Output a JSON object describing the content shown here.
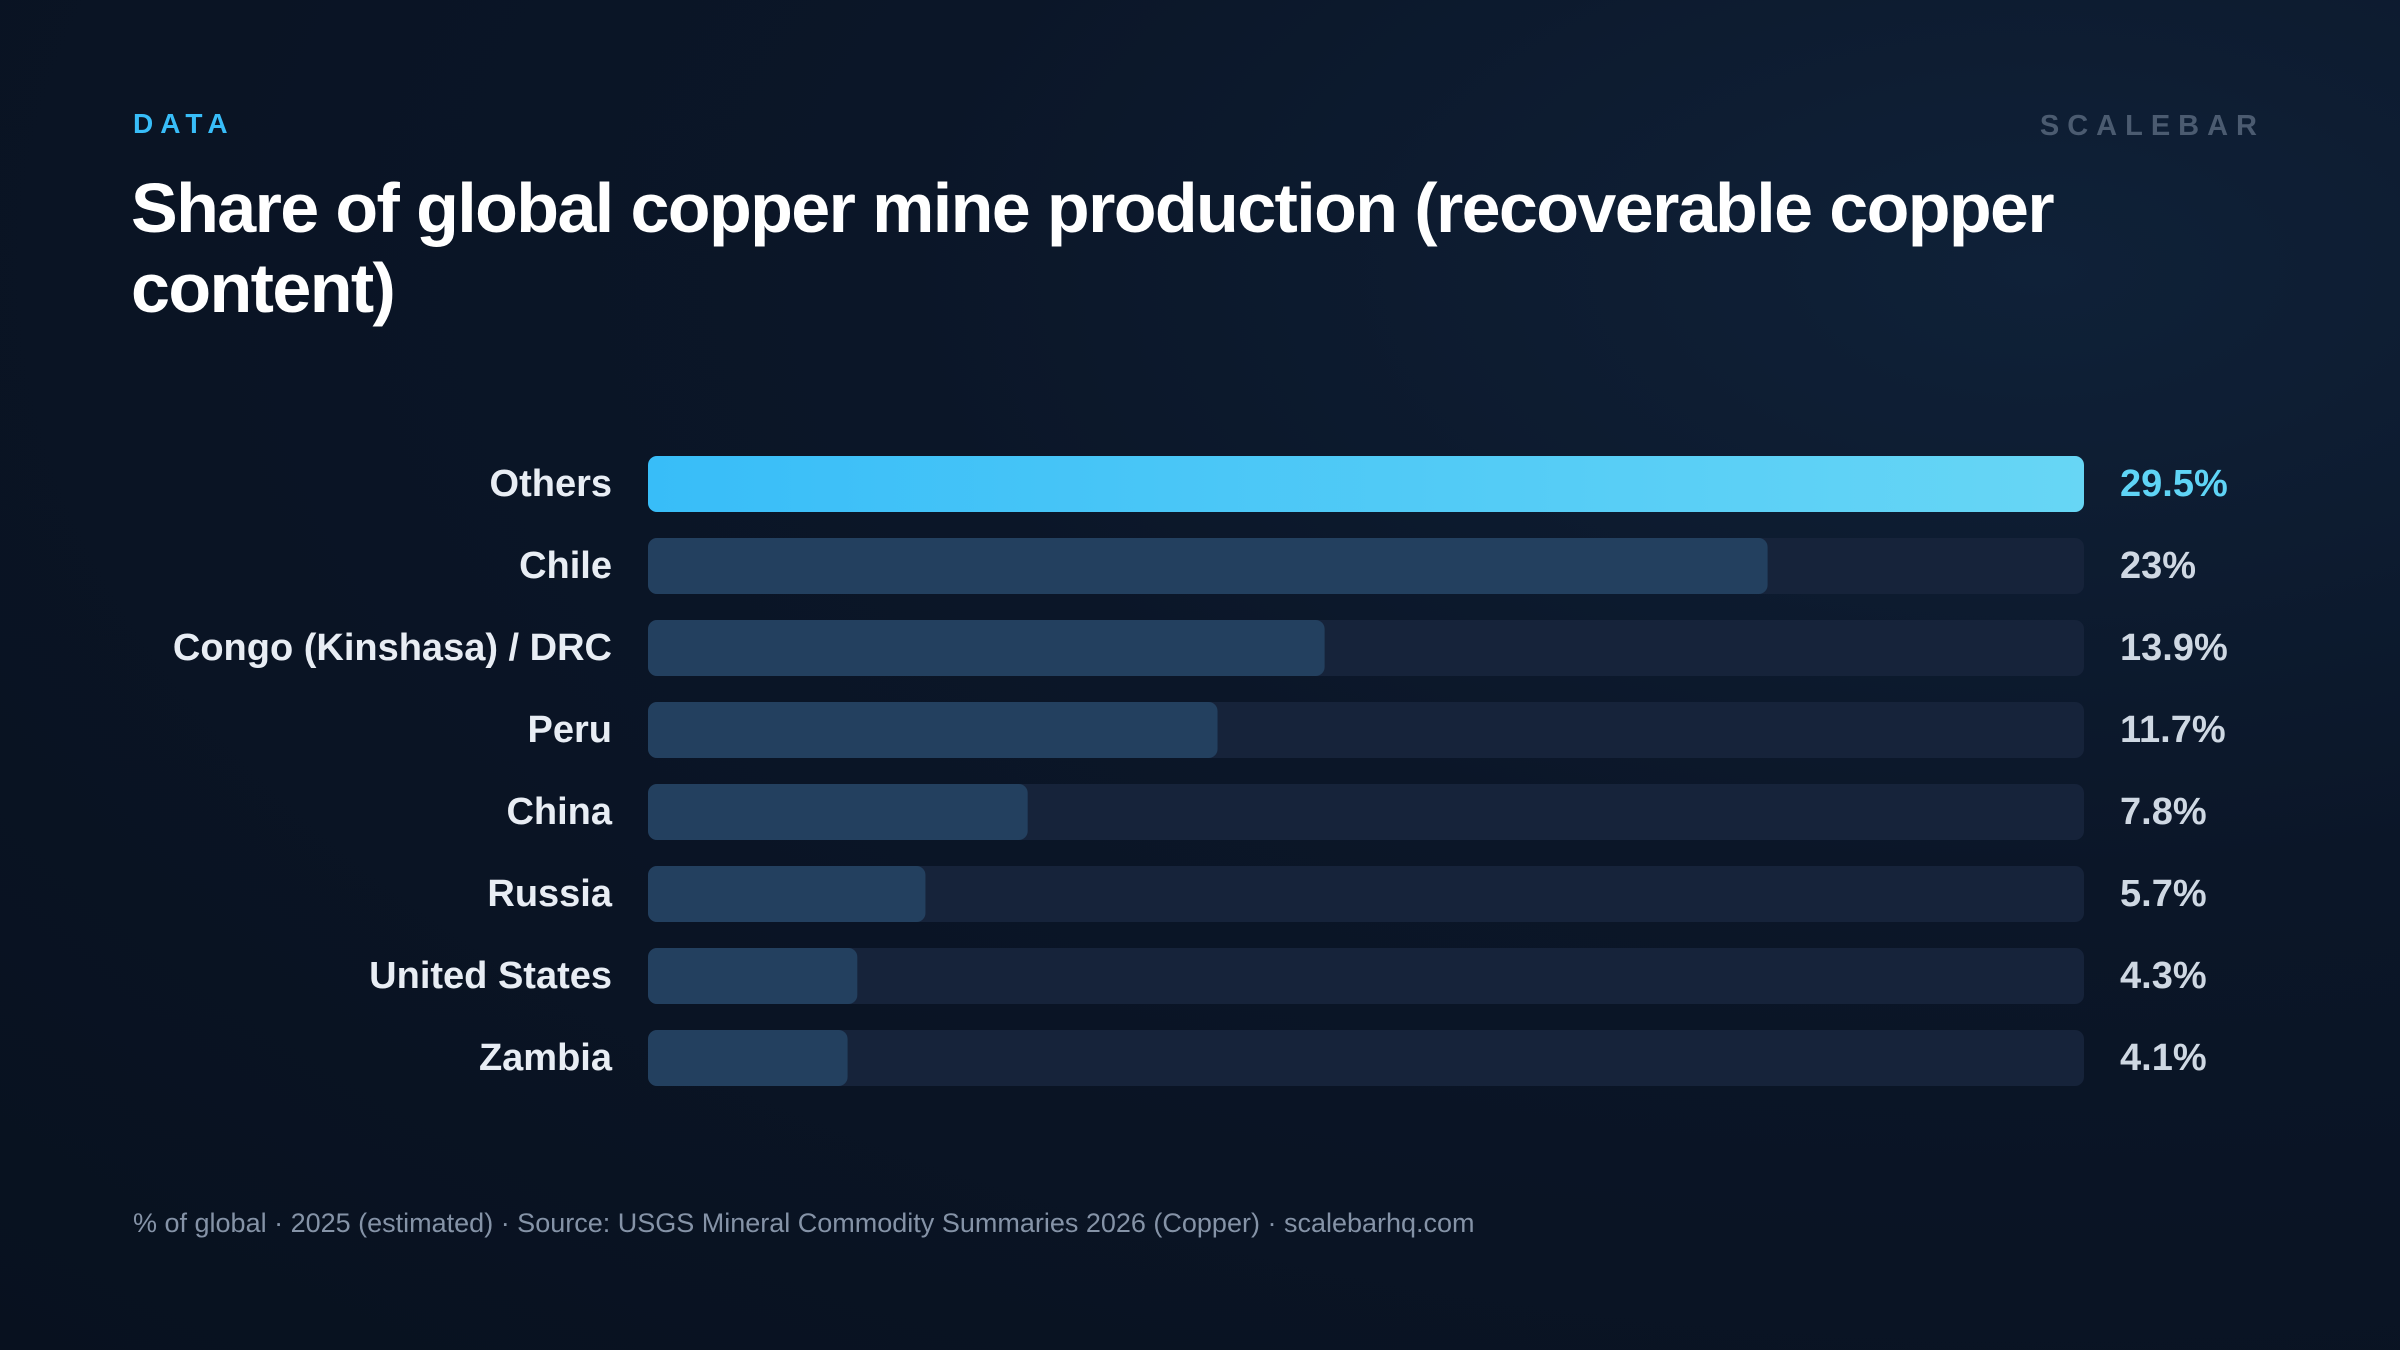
{
  "header": {
    "eyebrow": "DATA",
    "brand": "SCALEBAR",
    "title": "Share of global copper mine production (recoverable copper content)"
  },
  "footer": {
    "note": "% of global · 2025 (estimated) · Source: USGS Mineral Commodity Summaries 2026 (Copper) · scalebarhq.com"
  },
  "colors": {
    "highlight_start": "#38bdf8",
    "highlight_end": "#67d6f5",
    "bar": "#23405f",
    "track": "#16233a"
  },
  "chart_data": {
    "type": "bar",
    "orientation": "horizontal",
    "title": "Share of global copper mine production (recoverable copper content)",
    "categories": [
      "Others",
      "Chile",
      "Congo (Kinshasa) / DRC",
      "Peru",
      "China",
      "Russia",
      "United States",
      "Zambia"
    ],
    "values": [
      29.5,
      23,
      13.9,
      11.7,
      7.8,
      5.7,
      4.3,
      4.1
    ],
    "value_labels": [
      "29.5%",
      "23%",
      "13.9%",
      "11.7%",
      "7.8%",
      "5.7%",
      "4.3%",
      "4.1%"
    ],
    "xlim": [
      0,
      29.5
    ],
    "highlight_index": 0,
    "grid": false
  }
}
